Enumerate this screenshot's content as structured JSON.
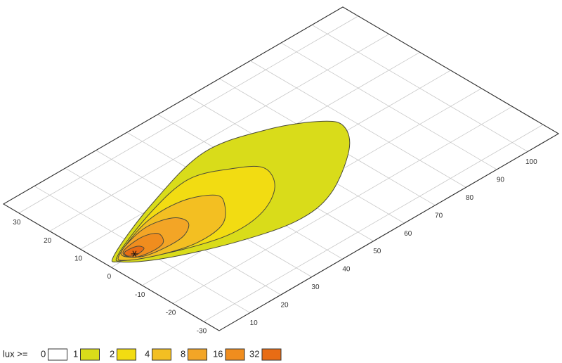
{
  "chart_data": {
    "type": "contour",
    "legend_title": "lux >=",
    "xlim": [
      0,
      110
    ],
    "ylim": [
      -35,
      35
    ],
    "xticks": [
      10,
      20,
      30,
      40,
      50,
      60,
      70,
      80,
      90,
      100
    ],
    "yticks": [
      -30,
      -20,
      -10,
      0,
      10,
      20,
      30
    ],
    "grid": true,
    "marker": {
      "x": 7.5,
      "y": 0
    },
    "series": [
      {
        "name": 0,
        "color": "#ffffff"
      },
      {
        "name": 1,
        "color": "#d9dc1a",
        "x": [
          4,
          24,
          47,
          64,
          75,
          77,
          71,
          56,
          43,
          27,
          11,
          3
        ],
        "y": [
          3,
          11,
          17,
          13,
          6.5,
          1.5,
          -6,
          -15,
          -17,
          -13,
          -6,
          0
        ]
      },
      {
        "name": 2,
        "color": "#f2dc12",
        "x": [
          4.6,
          22,
          37,
          47,
          52.5,
          49,
          40,
          29,
          16.5,
          4.4
        ],
        "y": [
          2.4,
          9,
          12,
          8,
          3,
          -4,
          -9,
          -10,
          -6.5,
          -0.5
        ]
      },
      {
        "name": 4,
        "color": "#f3bf22",
        "x": [
          4.8,
          18.6,
          30,
          37,
          36,
          30,
          21,
          12,
          4.4
        ],
        "y": [
          2.2,
          7,
          7,
          3.3,
          -0.7,
          -6,
          -7,
          -4.6,
          -0.5
        ]
      },
      {
        "name": 8,
        "color": "#f3a526",
        "x": [
          5.5,
          16,
          23.6,
          25,
          20.6,
          14,
          7.7
        ],
        "y": [
          2.4,
          5.5,
          3.9,
          0.1,
          -2.9,
          -3.2,
          -1.8
        ]
      },
      {
        "name": 16,
        "color": "#f08d1e",
        "x": [
          6.2,
          13,
          17,
          15.3,
          10.8,
          6.3
        ],
        "y": [
          2.4,
          3.5,
          1.9,
          -1.5,
          -2.1,
          -0.8
        ]
      },
      {
        "name": 32,
        "color": "#e86c14",
        "x": [
          6.5,
          10,
          10.6,
          7.7,
          5.8
        ],
        "y": [
          2.1,
          1.7,
          0,
          -0.6,
          0.5
        ]
      }
    ]
  }
}
